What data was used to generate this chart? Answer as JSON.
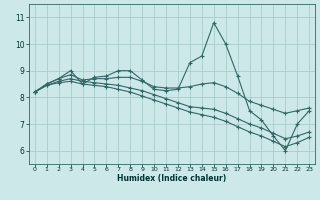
{
  "xlabel": "Humidex (Indice chaleur)",
  "background_color": "#cce8e8",
  "grid_color": "#aacccc",
  "line_color": "#336666",
  "xlim": [
    -0.5,
    23.5
  ],
  "ylim": [
    5.5,
    11.5
  ],
  "xticks": [
    0,
    1,
    2,
    3,
    4,
    5,
    6,
    7,
    8,
    9,
    10,
    11,
    12,
    13,
    14,
    15,
    16,
    17,
    18,
    19,
    20,
    21,
    22,
    23
  ],
  "yticks": [
    6,
    7,
    8,
    9,
    10,
    11
  ],
  "series": [
    [
      8.2,
      8.5,
      8.7,
      9.0,
      8.5,
      8.75,
      8.8,
      9.0,
      9.0,
      8.65,
      8.3,
      8.25,
      8.3,
      9.3,
      9.55,
      10.8,
      10.0,
      8.8,
      7.5,
      7.15,
      6.55,
      6.0,
      7.0,
      7.5
    ],
    [
      8.2,
      8.5,
      8.7,
      8.85,
      8.65,
      8.7,
      8.7,
      8.75,
      8.75,
      8.6,
      8.4,
      8.35,
      8.35,
      8.4,
      8.5,
      8.55,
      8.4,
      8.15,
      7.85,
      7.7,
      7.55,
      7.4,
      7.5,
      7.6
    ],
    [
      8.2,
      8.45,
      8.6,
      8.7,
      8.6,
      8.55,
      8.5,
      8.45,
      8.35,
      8.25,
      8.1,
      7.95,
      7.8,
      7.65,
      7.6,
      7.55,
      7.4,
      7.2,
      7.0,
      6.85,
      6.65,
      6.45,
      6.55,
      6.7
    ],
    [
      8.2,
      8.45,
      8.55,
      8.6,
      8.5,
      8.45,
      8.4,
      8.3,
      8.2,
      8.05,
      7.9,
      7.75,
      7.6,
      7.45,
      7.35,
      7.25,
      7.1,
      6.9,
      6.7,
      6.55,
      6.35,
      6.15,
      6.3,
      6.5
    ]
  ]
}
